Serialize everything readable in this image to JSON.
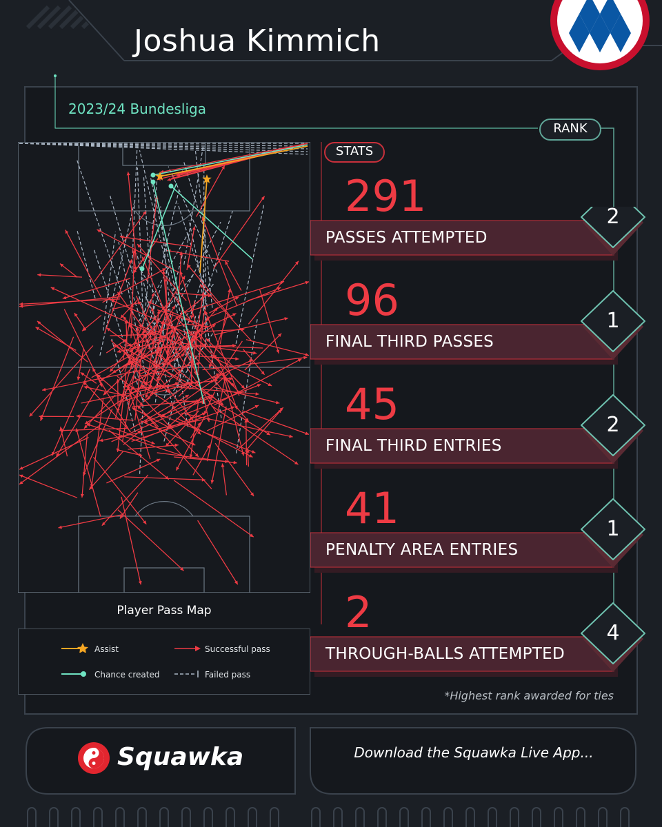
{
  "header": {
    "player_name": "Joshua Kimmich",
    "competition": "2023/24 Bundesliga"
  },
  "stats_panel": {
    "stats_label": "STATS",
    "rank_label": "RANK",
    "items": [
      {
        "value": "291",
        "label": "PASSES ATTEMPTED",
        "rank": "2"
      },
      {
        "value": "96",
        "label": "FINAL THIRD PASSES",
        "rank": "1"
      },
      {
        "value": "45",
        "label": "FINAL THIRD ENTRIES",
        "rank": "2"
      },
      {
        "value": "41",
        "label": "PENALTY AREA ENTRIES",
        "rank": "1"
      },
      {
        "value": "2",
        "label": "THROUGH-BALLS ATTEMPTED",
        "rank": "4"
      }
    ],
    "footnote": "*Highest rank awarded for ties"
  },
  "pass_map": {
    "caption": "Player Pass Map",
    "legend": {
      "assist": "Assist",
      "successful": "Successful pass",
      "chance": "Chance created",
      "failed": "Failed pass"
    }
  },
  "colors": {
    "background": "#1b1f25",
    "accent_red": "#ee3b44",
    "teal": "#6fe3c2",
    "assist_orange": "#f5a623",
    "failed_grey": "#aab6c4"
  },
  "footer": {
    "brand": "Squawka",
    "cta": "Download the Squawka Live App..."
  },
  "chart_data": {
    "type": "scatter",
    "title": "Player Pass Map",
    "series": [
      {
        "name": "Assist",
        "count": 2
      },
      {
        "name": "Chance created",
        "count": 4
      },
      {
        "name": "Successful pass"
      },
      {
        "name": "Failed pass"
      }
    ]
  }
}
